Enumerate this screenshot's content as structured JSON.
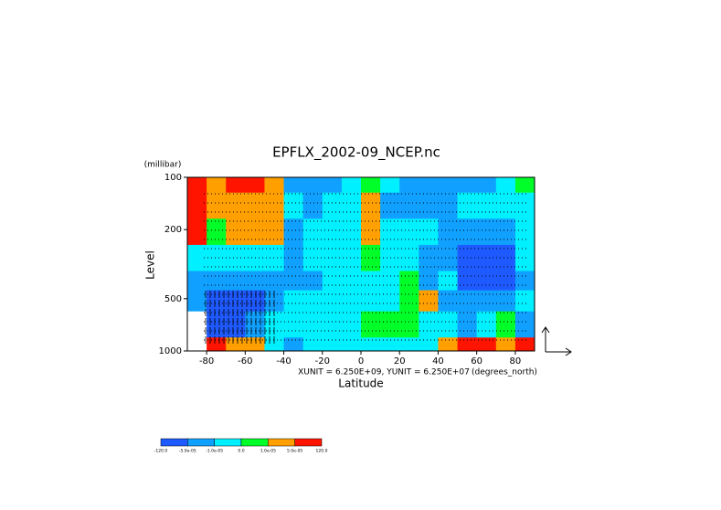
{
  "chart_data": {
    "type": "contour",
    "title": "EPFLX_2002-09_NCEP.nc",
    "x_label": "Latitude",
    "y_label": "Level",
    "y_unit": "(millibar)",
    "x_unit": "(degrees_north)",
    "annotation": "XUNIT = 6.250E+09, YUNIT = 6.250E+07",
    "xlim": [
      -90,
      90
    ],
    "xticks": [
      -80,
      -60,
      -40,
      -20,
      0,
      20,
      40,
      60,
      80
    ],
    "ylim": [
      1000,
      100
    ],
    "yticks": [
      100,
      200,
      500,
      1000
    ],
    "y_log": true,
    "x": [
      -85,
      -75,
      -65,
      -55,
      -45,
      -35,
      -25,
      -15,
      -5,
      5,
      15,
      25,
      35,
      45,
      55,
      65,
      75,
      85
    ],
    "levels": [
      100,
      150,
      200,
      300,
      400,
      500,
      700,
      1000
    ],
    "z": [
      [
        8e-05,
        3e-05,
        8e-05,
        8e-05,
        3e-05,
        -3e-05,
        -3e-05,
        -3e-05,
        -5e-06,
        5e-06,
        -5e-06,
        -3e-05,
        -3e-05,
        -3e-05,
        -3e-05,
        -3e-05,
        -5e-06,
        5e-06
      ],
      [
        8e-05,
        3e-05,
        3e-05,
        3e-05,
        3e-05,
        -5e-06,
        -3e-05,
        -5e-06,
        -5e-06,
        3e-05,
        -3e-05,
        -3e-05,
        -3e-05,
        -3e-05,
        -5e-06,
        -5e-06,
        -5e-06,
        -5e-06
      ],
      [
        8e-05,
        5e-06,
        3e-05,
        3e-05,
        3e-05,
        -3e-05,
        -5e-06,
        -5e-06,
        -5e-06,
        3e-05,
        -5e-06,
        -5e-06,
        -5e-06,
        -3e-05,
        -3e-05,
        -3e-05,
        -3e-05,
        -5e-06
      ],
      [
        -5e-06,
        -5e-06,
        -5e-06,
        -5e-06,
        -5e-06,
        -3e-05,
        -5e-06,
        -5e-06,
        -5e-06,
        5e-06,
        -5e-06,
        -5e-06,
        -3e-05,
        -3e-05,
        -8e-05,
        -8e-05,
        -8e-05,
        -5e-06
      ],
      [
        -3e-05,
        -3e-05,
        -3e-05,
        -3e-05,
        -3e-05,
        -3e-05,
        -3e-05,
        -5e-06,
        -5e-06,
        -5e-06,
        -5e-06,
        5e-06,
        -3e-05,
        -5e-06,
        -8e-05,
        -8e-05,
        -8e-05,
        -3e-05
      ],
      [
        -3e-05,
        -8e-05,
        -8e-05,
        -8e-05,
        -3e-05,
        -5e-06,
        -5e-06,
        -5e-06,
        -5e-06,
        -5e-06,
        -5e-06,
        5e-06,
        3e-05,
        -3e-05,
        -3e-05,
        -3e-05,
        -3e-05,
        -5e-06
      ],
      [
        null,
        -8e-05,
        -8e-05,
        -3e-05,
        -5e-06,
        -5e-06,
        -5e-06,
        -5e-06,
        -5e-06,
        5e-06,
        5e-06,
        5e-06,
        -5e-06,
        -5e-06,
        -3e-05,
        -5e-06,
        5e-06,
        -3e-05
      ],
      [
        null,
        8e-05,
        3e-05,
        3e-05,
        -5e-06,
        -3e-05,
        -5e-06,
        -5e-06,
        -5e-06,
        -5e-06,
        -5e-06,
        -5e-06,
        -5e-06,
        3e-05,
        8e-05,
        8e-05,
        3e-05,
        8e-05
      ]
    ],
    "colorbar": {
      "levels": [
        {
          "value": -120,
          "label": "-120.0"
        },
        {
          "value": -5e-05,
          "label": "-5.0e-05"
        },
        {
          "value": -1e-05,
          "label": "-1.0e-05"
        },
        {
          "value": 0,
          "label": "0.0"
        },
        {
          "value": 1e-05,
          "label": "1.0e-05"
        },
        {
          "value": 5e-05,
          "label": "5.0e-05"
        },
        {
          "value": 120,
          "label": "120.0"
        }
      ],
      "colors": [
        "#1e5aff",
        "#10a0ff",
        "#00f0ff",
        "#00ff28",
        "#ffa000",
        "#ff1400"
      ]
    }
  }
}
